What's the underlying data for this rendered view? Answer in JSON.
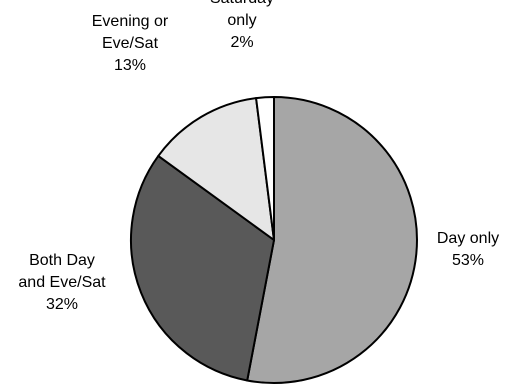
{
  "chart_data": {
    "type": "pie",
    "title": "",
    "start_angle_deg": 0,
    "direction": "clockwise",
    "slices": [
      {
        "label_lines": [
          "Day only"
        ],
        "value": 53,
        "display": "53%",
        "color": "#a6a6a6"
      },
      {
        "label_lines": [
          "Both Day",
          "and Eve/Sat"
        ],
        "value": 32,
        "display": "32%",
        "color": "#595959"
      },
      {
        "label_lines": [
          "Evening or",
          "Eve/Sat"
        ],
        "value": 13,
        "display": "13%",
        "color": "#e6e6e6"
      },
      {
        "label_lines": [
          "Saturday",
          "only"
        ],
        "value": 2,
        "display": "2%",
        "color": "#ffffff"
      }
    ],
    "legend": "none"
  }
}
